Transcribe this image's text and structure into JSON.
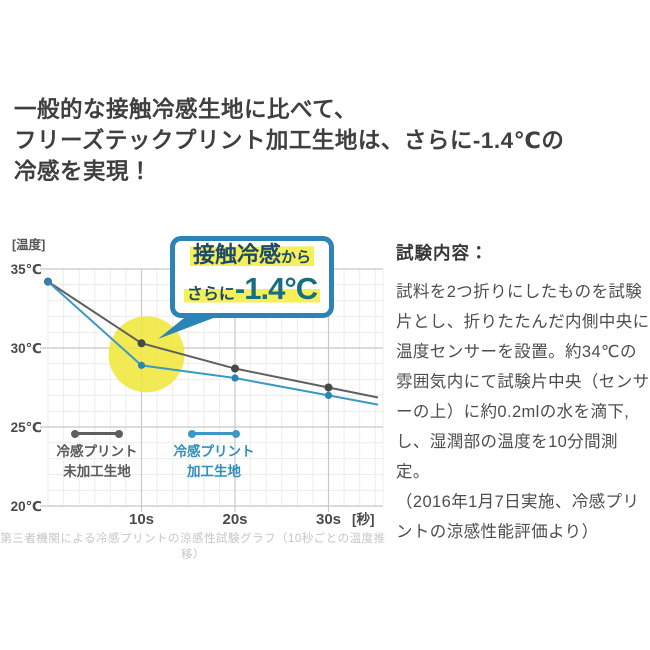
{
  "title": {
    "lines": [
      "一般的な接触冷感生地に比べて、",
      "フリーズテックプリント加工生地は、さらに-1.4℃の",
      "冷感を実現！"
    ]
  },
  "chart": {
    "ylabel": "[温度]",
    "xunit": "[秒]",
    "callout": {
      "line1_main": "接触冷感",
      "line1_small": "から",
      "line2_small": "さらに",
      "line2_value": "-1.4°C"
    },
    "caption": "第三者機関による冷感プリントの涼感性試験グラフ（10秒ごとの温度推移）"
  },
  "chart_data": {
    "type": "line",
    "title": "冷感プリント涼感性試験（10秒ごとの温度推移）",
    "x": [
      0,
      10,
      20,
      30
    ],
    "xlabel": "秒",
    "ylabel": "温度",
    "series": [
      {
        "name": "冷感プリント未加工生地",
        "color": "#5f5f5f",
        "dot_color": "#474747",
        "values": [
          34.2,
          30.3,
          28.7,
          27.5
        ]
      },
      {
        "name": "冷感プリント加工生地",
        "color": "#3c99c6",
        "dot_color": "#2b84b5",
        "values": [
          34.2,
          28.9,
          28.1,
          27.0
        ]
      }
    ],
    "yticks": [
      35,
      30,
      25,
      20
    ],
    "ytick_labels": [
      "35℃",
      "30℃",
      "25℃",
      "20℃"
    ],
    "xticks": [
      10,
      20,
      30
    ],
    "xtick_labels": [
      "10s",
      "20s",
      "30s"
    ],
    "ylim": [
      20,
      35
    ],
    "xlim": [
      0,
      35.8
    ],
    "grid": true,
    "legend_position": "inside-bottom-left",
    "annotation": {
      "text": "接触冷感から さらに -1.4°C",
      "at_x": 10,
      "difference_c": -1.4,
      "highlight_circle_color": "#f0e73a",
      "bubble_border_color": "#2b84b5",
      "highlight_marker_color": "#f6ef55"
    },
    "legend": [
      {
        "label1": "冷感プリント",
        "label2": "未加工生地",
        "color": "#5f5f5f",
        "text_color": "#5a5a5a"
      },
      {
        "label1": "冷感プリント",
        "label2": "加工生地",
        "color": "#3c99c6",
        "text_color": "#2f8fbe"
      }
    ]
  },
  "panel": {
    "heading": "試験内容：",
    "body": "試料を2つ折りにしたものを試験片とし、折りたたんだ内側中央に温度センサーを設置。約34℃の雰囲気内にて試験片中央（センサーの上）に約0.2mlの水を滴下,し、湿潤部の温度を10分間測定。",
    "note": "（2016年1月7日実施、冷感プリントの涼感性能評価より）"
  },
  "colors": {
    "accent_blue": "#2b84b5",
    "navy_text": "#1b4a70",
    "teal_value": "#166f80",
    "yellow_circle": "#f0e73a",
    "yellow_highlight": "#f6ef55",
    "title_text": "#3f3f3f",
    "caption_gray": "#c6c6c6"
  }
}
